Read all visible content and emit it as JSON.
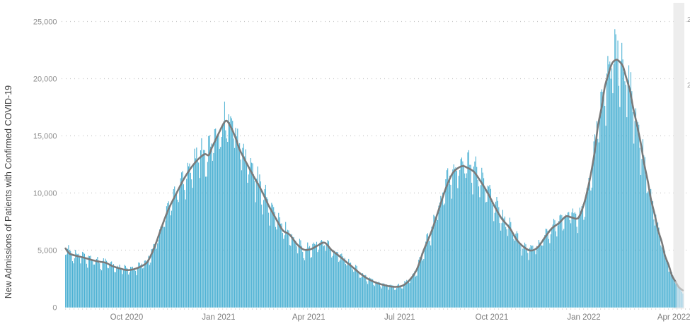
{
  "chart_data": {
    "type": "bar",
    "title": "",
    "xlabel": "",
    "ylabel": "New Admissions of Patients with Confirmed COVID-19",
    "ylim": [
      0,
      25000
    ],
    "y_tick_values": [
      0,
      5000,
      10000,
      15000,
      20000,
      25000
    ],
    "y_tick_labels": [
      "0",
      "5,000",
      "10,000",
      "15,000",
      "20,000",
      "25,000"
    ],
    "x_tick_labels": [
      "Oct 2020",
      "Jan 2021",
      "Apr 2021",
      "Jul 2021",
      "Oct 2021",
      "Jan 2022",
      "Apr 2022"
    ],
    "x_tick_days": [
      61,
      153,
      243,
      334,
      426,
      518,
      608
    ],
    "start_date": "2020-08-01",
    "num_days": 618,
    "grid": "dotted horizontal gridlines at each 5,000 plus baseline at 0",
    "legend": "none",
    "series": [
      {
        "name": "daily-new-admissions",
        "type": "bar",
        "color": "#48AFD2",
        "recent_color": "#A9D5E8"
      },
      {
        "name": "seven-day-average",
        "type": "line",
        "color": "#7A7A7A",
        "recent_color": "#BBBBBB"
      }
    ],
    "avg_line_control_points": [
      [
        0,
        5150
      ],
      [
        4,
        4700
      ],
      [
        11,
        4500
      ],
      [
        18,
        4350
      ],
      [
        26,
        4150
      ],
      [
        33,
        4000
      ],
      [
        40,
        3900
      ],
      [
        47,
        3600
      ],
      [
        54,
        3400
      ],
      [
        61,
        3260
      ],
      [
        68,
        3330
      ],
      [
        75,
        3560
      ],
      [
        82,
        4000
      ],
      [
        89,
        5300
      ],
      [
        96,
        7000
      ],
      [
        103,
        8600
      ],
      [
        111,
        10000
      ],
      [
        118,
        11200
      ],
      [
        125,
        12150
      ],
      [
        132,
        12900
      ],
      [
        139,
        13400
      ],
      [
        143,
        13300
      ],
      [
        146,
        13900
      ],
      [
        153,
        15200
      ],
      [
        160,
        16300
      ],
      [
        165,
        15800
      ],
      [
        170,
        14800
      ],
      [
        174,
        13800
      ],
      [
        181,
        12600
      ],
      [
        188,
        11450
      ],
      [
        196,
        10200
      ],
      [
        203,
        8900
      ],
      [
        210,
        7800
      ],
      [
        217,
        6750
      ],
      [
        224,
        6350
      ],
      [
        231,
        5550
      ],
      [
        238,
        5050
      ],
      [
        245,
        5080
      ],
      [
        252,
        5400
      ],
      [
        259,
        5650
      ],
      [
        266,
        5000
      ],
      [
        274,
        4450
      ],
      [
        281,
        3940
      ],
      [
        288,
        3430
      ],
      [
        295,
        2920
      ],
      [
        302,
        2500
      ],
      [
        309,
        2200
      ],
      [
        316,
        2000
      ],
      [
        323,
        1850
      ],
      [
        330,
        1790
      ],
      [
        337,
        1900
      ],
      [
        344,
        2400
      ],
      [
        351,
        3300
      ],
      [
        358,
        5000
      ],
      [
        366,
        6700
      ],
      [
        373,
        8550
      ],
      [
        380,
        10400
      ],
      [
        387,
        11750
      ],
      [
        394,
        12270
      ],
      [
        398,
        12350
      ],
      [
        401,
        12230
      ],
      [
        408,
        11860
      ],
      [
        415,
        11000
      ],
      [
        422,
        10000
      ],
      [
        429,
        8800
      ],
      [
        436,
        7750
      ],
      [
        444,
        6925
      ],
      [
        451,
        5900
      ],
      [
        458,
        5280
      ],
      [
        465,
        4960
      ],
      [
        472,
        5250
      ],
      [
        479,
        6100
      ],
      [
        486,
        6900
      ],
      [
        493,
        7350
      ],
      [
        500,
        7950
      ],
      [
        505,
        7880
      ],
      [
        511,
        7750
      ],
      [
        514,
        8050
      ],
      [
        518,
        9000
      ],
      [
        521,
        10000
      ],
      [
        525,
        11650
      ],
      [
        529,
        13700
      ],
      [
        532,
        15800
      ],
      [
        536,
        17600
      ],
      [
        539,
        19300
      ],
      [
        543,
        20500
      ],
      [
        546,
        21300
      ],
      [
        550,
        21650
      ],
      [
        553,
        21550
      ],
      [
        557,
        21100
      ],
      [
        560,
        20200
      ],
      [
        564,
        19000
      ],
      [
        567,
        17600
      ],
      [
        571,
        16000
      ],
      [
        575,
        14300
      ],
      [
        578,
        12700
      ],
      [
        582,
        11000
      ],
      [
        585,
        9500
      ],
      [
        589,
        8050
      ],
      [
        592,
        6800
      ],
      [
        596,
        5700
      ],
      [
        599,
        4550
      ],
      [
        603,
        3650
      ],
      [
        606,
        2800
      ],
      [
        610,
        2200
      ],
      [
        613,
        1750
      ],
      [
        617,
        1480
      ]
    ],
    "daily_bar_model": {
      "comment": "daily bars oscillate around the 7-day average with a weekly pattern (weekend dips) plus small noise",
      "weekday_multipliers": [
        -0.12,
        0.01,
        0.08,
        0.07,
        0.05,
        0.02,
        -0.08
      ],
      "weekday_order": [
        "sun",
        "mon",
        "tue",
        "wed",
        "thu",
        "fri",
        "sat"
      ],
      "start_weekday_index": 6,
      "noise_amplitude": 0.07,
      "observed_max_daily_bar": 23000,
      "observed_max_daily_bar_jan2021": 18000
    },
    "recent_incomplete_period": {
      "start_day": 611,
      "band_color": "#EDEDED",
      "bar_color": "#A9D5E8",
      "line_color": "#BBBBBB"
    }
  },
  "axes": {
    "y_title": "New Admissions of Patients with Confirmed COVID-19"
  },
  "colors": {
    "background": "#FFFFFF",
    "bar": "#48AFD2",
    "bar_recent": "#A9D5E8",
    "line": "#7A7A7A",
    "line_recent": "#BBBBBB",
    "grid": "#C8C8C8",
    "tick_text": "#8E8E8E",
    "x_tick_text": "#7D7D7D",
    "band": "#EDEDED"
  },
  "right_edge_clipped_labels": [
    {
      "y": 31,
      "text": "2"
    },
    {
      "y": 124,
      "text": "2"
    }
  ]
}
